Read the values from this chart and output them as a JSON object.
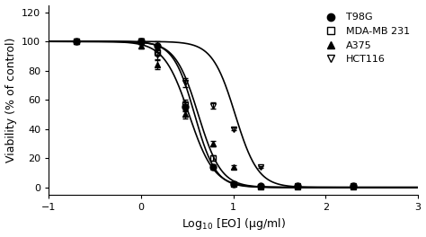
{
  "title": "",
  "xlabel": "Log$_{10}$ [EO] (μg/ml)",
  "ylabel": "Viability (% of control)",
  "xlim": [
    -1,
    3
  ],
  "ylim": [
    -5,
    125
  ],
  "xticks": [
    -1,
    0,
    1,
    2,
    3
  ],
  "yticks": [
    0,
    20,
    40,
    60,
    80,
    100,
    120
  ],
  "series": [
    {
      "name": "T98G",
      "marker": "o",
      "fillstyle": "full",
      "color": "black",
      "ic50_log": 0.62,
      "hill": 3.5,
      "top": 100,
      "bottom": 0,
      "data_x": [
        -0.7,
        0.0,
        0.18,
        0.48,
        0.78,
        1.0,
        1.3,
        1.7,
        2.3
      ],
      "data_y": [
        100,
        100,
        97,
        55,
        14,
        2,
        1,
        1,
        1
      ],
      "error_y": [
        0.5,
        2,
        3,
        3,
        2,
        1,
        0.5,
        0.5,
        0.5
      ]
    },
    {
      "name": "MDA-MB 231",
      "marker": "s",
      "fillstyle": "none",
      "color": "black",
      "ic50_log": 0.58,
      "hill": 3.8,
      "top": 100,
      "bottom": 0,
      "data_x": [
        -0.7,
        0.0,
        0.18,
        0.48,
        0.78,
        1.0,
        1.3,
        1.7,
        2.3
      ],
      "data_y": [
        100,
        100,
        93,
        57,
        20,
        2,
        0.5,
        0.5,
        0.5
      ],
      "error_y": [
        0.5,
        2,
        3,
        3,
        2,
        1,
        0.5,
        0.5,
        0.5
      ]
    },
    {
      "name": "A375",
      "marker": "^",
      "fillstyle": "full",
      "color": "black",
      "ic50_log": 0.52,
      "hill": 3.2,
      "top": 100,
      "bottom": 0,
      "data_x": [
        -0.7,
        0.0,
        0.18,
        0.48,
        0.78,
        1.0,
        1.3,
        1.7,
        2.3
      ],
      "data_y": [
        100,
        97,
        84,
        50,
        30,
        14,
        1,
        1,
        1
      ],
      "error_y": [
        0.5,
        2,
        3,
        3,
        2,
        1,
        0.5,
        0.5,
        0.5
      ]
    },
    {
      "name": "HCT116",
      "marker": "v",
      "fillstyle": "none",
      "color": "black",
      "ic50_log": 1.02,
      "hill": 3.5,
      "top": 100,
      "bottom": 0,
      "data_x": [
        -0.7,
        0.0,
        0.18,
        0.48,
        0.78,
        1.0,
        1.3,
        1.7,
        2.3
      ],
      "data_y": [
        100,
        100,
        91,
        72,
        56,
        40,
        14,
        1,
        1
      ],
      "error_y": [
        0.5,
        2,
        3,
        3,
        2,
        1,
        0.5,
        0.5,
        0.5
      ]
    }
  ],
  "background_color": "#ffffff"
}
